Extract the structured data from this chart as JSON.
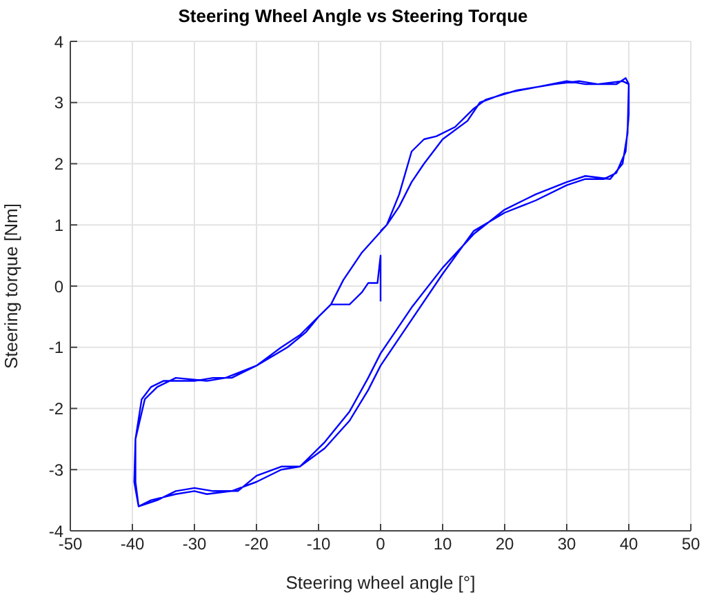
{
  "chart_data": {
    "type": "line",
    "title": "Steering Wheel Angle vs Steering Torque",
    "xlabel": "Steering wheel angle [°]",
    "ylabel": "Steering torque [Nm]",
    "xlim": [
      -50,
      50
    ],
    "xticks": [
      -50,
      -40,
      -30,
      -20,
      -10,
      0,
      10,
      20,
      30,
      40,
      50
    ],
    "ylim": [
      -4,
      4
    ],
    "yticks": [
      -4,
      -3,
      -2,
      -1,
      0,
      1,
      2,
      3,
      4
    ],
    "grid": true,
    "marker": "none",
    "line_style": "solid",
    "series": [
      {
        "color": "#0000ff",
        "x": [
          0,
          0,
          -0.5,
          -2,
          -3,
          -5,
          -8,
          -10,
          -12,
          -15,
          -20,
          -25,
          -28,
          -33,
          -36,
          -38,
          -39.5,
          -39.5,
          -39,
          -37,
          -33,
          -30,
          -28,
          -24,
          -20,
          -16,
          -13,
          -9,
          -5,
          -2,
          0,
          4,
          10,
          15,
          20,
          25,
          30,
          33,
          36,
          38,
          39.5,
          40,
          40,
          39.5,
          38,
          33,
          30,
          25,
          20,
          16,
          14,
          10,
          7,
          5,
          3,
          1,
          -3,
          -6,
          -8,
          -10,
          -13,
          -16,
          -20,
          -24,
          -27,
          -30,
          -35,
          -37,
          -38.5,
          -39.5,
          -39.7,
          -39,
          -36,
          -33,
          -30,
          -27,
          -23,
          -20,
          -16,
          -13,
          -9,
          -5,
          -2,
          0,
          5,
          10,
          15,
          20,
          25,
          30,
          33,
          37,
          39,
          39.8,
          40,
          39,
          35,
          32,
          28,
          22,
          17,
          15,
          12,
          9,
          7,
          5,
          3,
          1,
          0
        ],
        "values": [
          -0.25,
          0.5,
          0.05,
          0.05,
          -0.1,
          -0.3,
          -0.3,
          -0.5,
          -0.75,
          -1.0,
          -1.3,
          -1.5,
          -1.55,
          -1.5,
          -1.65,
          -1.85,
          -2.5,
          -3.2,
          -3.6,
          -3.5,
          -3.4,
          -3.35,
          -3.4,
          -3.35,
          -3.2,
          -3.0,
          -2.95,
          -2.65,
          -2.2,
          -1.7,
          -1.3,
          -0.7,
          0.2,
          0.9,
          1.2,
          1.4,
          1.65,
          1.75,
          1.75,
          1.85,
          2.2,
          2.8,
          3.3,
          3.4,
          3.3,
          3.3,
          3.35,
          3.25,
          3.15,
          3.0,
          2.7,
          2.4,
          2.0,
          1.7,
          1.3,
          1.0,
          0.55,
          0.1,
          -0.3,
          -0.5,
          -0.8,
          -1.0,
          -1.3,
          -1.5,
          -1.5,
          -1.55,
          -1.55,
          -1.65,
          -1.85,
          -2.5,
          -3.2,
          -3.6,
          -3.5,
          -3.35,
          -3.3,
          -3.35,
          -3.35,
          -3.1,
          -2.95,
          -2.95,
          -2.55,
          -2.05,
          -1.5,
          -1.1,
          -0.35,
          0.3,
          0.85,
          1.25,
          1.5,
          1.7,
          1.8,
          1.75,
          2.0,
          2.5,
          3.3,
          3.35,
          3.3,
          3.35,
          3.3,
          3.2,
          3.05,
          2.9,
          2.6,
          2.45,
          2.4,
          2.2,
          1.5,
          1.0,
          0.9
        ]
      }
    ]
  }
}
